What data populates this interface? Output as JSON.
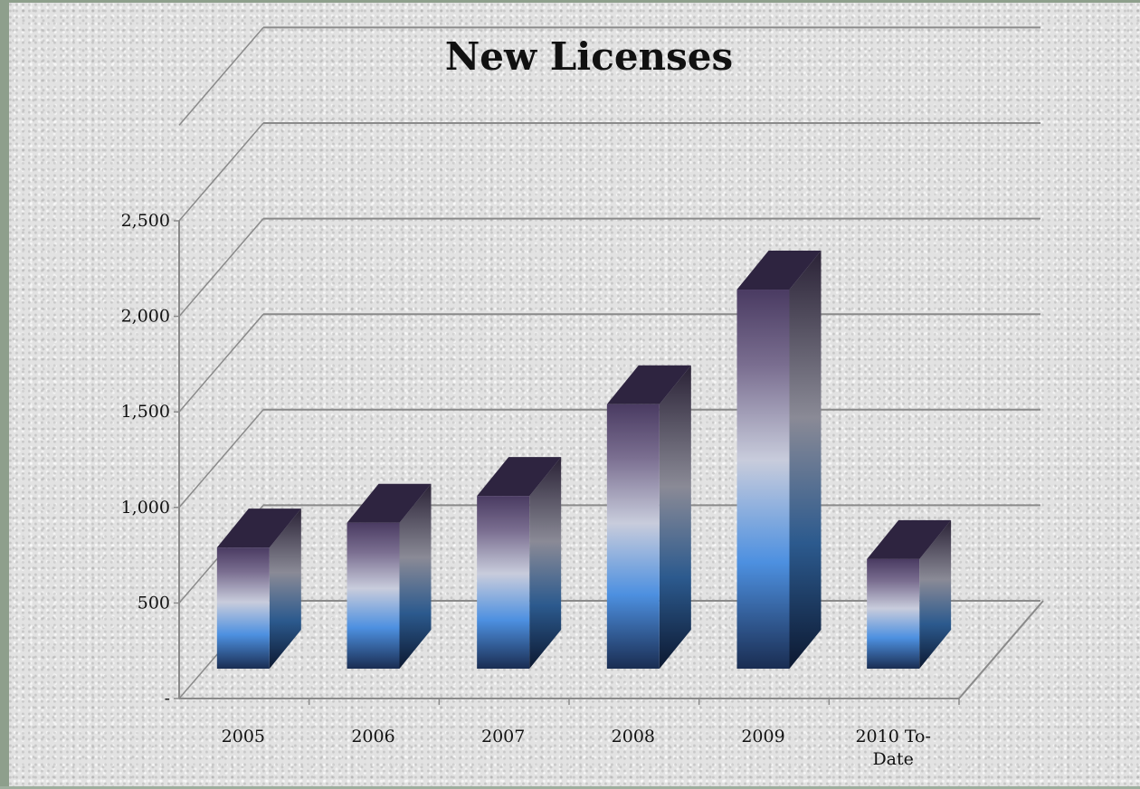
{
  "chart_data": {
    "type": "bar",
    "title": "New Licenses",
    "xlabel": "",
    "ylabel": "",
    "categories": [
      "2005",
      "2006",
      "2007",
      "2008",
      "2009",
      "2010 To-Date"
    ],
    "values": [
      790,
      920,
      1060,
      1540,
      2140,
      730
    ],
    "ylim": [
      0,
      3000
    ],
    "yticks": [
      {
        "value": 0,
        "label": "-"
      },
      {
        "value": 500,
        "label": "500"
      },
      {
        "value": 1000,
        "label": "1,000"
      },
      {
        "value": 1500,
        "label": "1,500"
      },
      {
        "value": 2000,
        "label": "2,000"
      },
      {
        "value": 2500,
        "label": "2,500"
      }
    ],
    "grid": true,
    "legend": "none",
    "style": "3d-column",
    "colors": {
      "bar_dark": "#1a2d52",
      "bar_blue": "#4d90e0",
      "bar_light": "#c8ccdc",
      "bar_purple": "#4a3b62",
      "bar_top": "#2e2440",
      "grid": "#8a8a8a",
      "background": "#e2e2e2"
    }
  }
}
